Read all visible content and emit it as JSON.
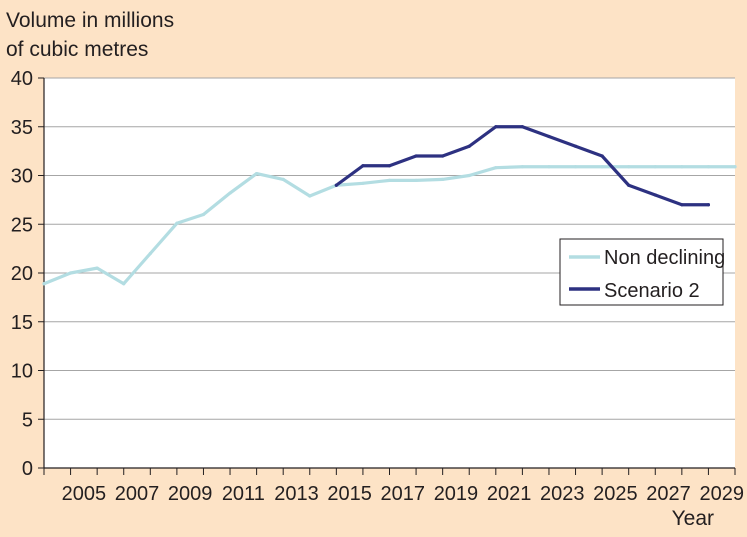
{
  "chart_data": {
    "type": "line",
    "ylabel_lines": [
      "Volume in millions",
      "of cubic metres"
    ],
    "xlabel": "Year",
    "ylim": [
      0,
      40
    ],
    "yticks": [
      0,
      5,
      10,
      15,
      20,
      25,
      30,
      35,
      40
    ],
    "xlim": [
      2004,
      2030
    ],
    "xticks": [
      2005,
      2007,
      2009,
      2011,
      2013,
      2015,
      2017,
      2019,
      2021,
      2023,
      2025,
      2027,
      2029
    ],
    "grid": true,
    "legend_position": "right",
    "colors": {
      "background": "#fde3c6",
      "plot_background": "#ffffff",
      "gridline": "#a6a6a6",
      "axis": "#231f20"
    },
    "series": [
      {
        "name": "Non declining",
        "color": "#b3dde2",
        "x": [
          2004,
          2005,
          2006,
          2007,
          2008,
          2009,
          2010,
          2011,
          2012,
          2013,
          2014,
          2015,
          2016,
          2017,
          2018,
          2019,
          2020,
          2021,
          2022,
          2023,
          2024,
          2025,
          2026,
          2027,
          2028,
          2029,
          2030
        ],
        "values": [
          18.9,
          20.0,
          20.5,
          18.9,
          22.0,
          25.1,
          26.0,
          28.2,
          30.2,
          29.6,
          27.9,
          29.0,
          29.2,
          29.5,
          29.5,
          29.6,
          30.0,
          30.8,
          30.9,
          30.9,
          30.9,
          30.9,
          30.9,
          30.9,
          30.9,
          30.9,
          30.9
        ]
      },
      {
        "name": "Scenario 2",
        "color": "#2d3181",
        "x": [
          2015,
          2016,
          2017,
          2018,
          2019,
          2020,
          2021,
          2022,
          2023,
          2024,
          2025,
          2026,
          2027,
          2028,
          2029
        ],
        "values": [
          29.0,
          31.0,
          31.0,
          32.0,
          32.0,
          33.0,
          35.0,
          35.0,
          34.0,
          33.0,
          32.0,
          29.0,
          28.0,
          27.0,
          27.0
        ]
      }
    ]
  }
}
